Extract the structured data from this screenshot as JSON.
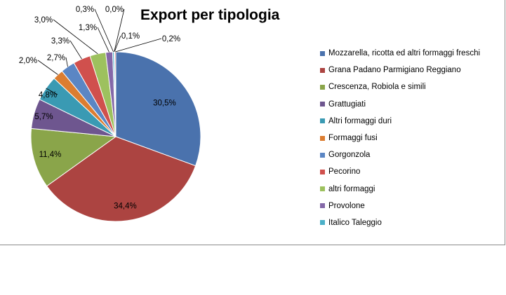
{
  "chart_data": {
    "type": "pie",
    "title": "Export per tipologia",
    "legend_position": "right",
    "slices": [
      {
        "name": "Mozzarella, ricotta ed altri formaggi  freschi",
        "value": 30.5,
        "label": "30,5%",
        "color": "#4a72ad"
      },
      {
        "name": "Grana Padano  Parmigiano  Reggiano",
        "value": 34.4,
        "label": "34,4%",
        "color": "#ac4441"
      },
      {
        "name": "Crescenza, Robiola e simili",
        "value": 11.4,
        "label": "11,4%",
        "color": "#8aa54a"
      },
      {
        "name": "Grattugiati",
        "value": 5.7,
        "label": "5,7%",
        "color": "#6e568f"
      },
      {
        "name": "Altri formaggi  duri",
        "value": 4.8,
        "label": "4,8%",
        "color": "#3a9ab3"
      },
      {
        "name": "Formaggi  fusi",
        "value": 2.0,
        "label": "2,0%",
        "color": "#dc7d30"
      },
      {
        "name": "Gorgonzola",
        "value": 2.7,
        "label": "2,7%",
        "color": "#5b86c4"
      },
      {
        "name": "Pecorino",
        "value": 3.3,
        "label": "3,3%",
        "color": "#d0504d"
      },
      {
        "name": "altri formaggi",
        "value": 3.0,
        "label": "3,0%",
        "color": "#9dc15e"
      },
      {
        "name": "Provolone",
        "value": 1.3,
        "label": "1,3%",
        "color": "#8468a8"
      },
      {
        "name": "Italico Taleggio",
        "value": 0.3,
        "label": "0,3%",
        "color": "#4bb0c8"
      },
      {
        "name": "",
        "value": 0.0,
        "label": "0,0%",
        "color": "#f79646"
      },
      {
        "name": "",
        "value": 0.1,
        "label": "0,1%",
        "color": "#95b3d7"
      },
      {
        "name": "",
        "value": 0.2,
        "label": "0,2%",
        "color": "#c0504d"
      }
    ]
  }
}
